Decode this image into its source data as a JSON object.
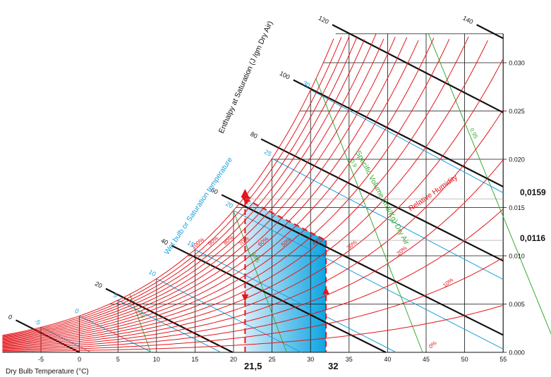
{
  "chart_data": {
    "type": "psychrometric",
    "colors": {
      "rh": "#e3161b",
      "enthalpy": "#111111",
      "grid": "#111111",
      "wetbulb": "#1ba1dc",
      "volume": "#3aa935",
      "arrow": "#e3161b",
      "region_light": "#d2eaf8",
      "region_dark": "#00a0e0"
    },
    "x_axis": {
      "label": "Dry Bulb Temperature (°C)",
      "ticks": [
        "-5",
        "0",
        "5",
        "10",
        "15",
        "20",
        "25",
        "30",
        "35",
        "40",
        "45",
        "50",
        "55"
      ],
      "range": [
        -10,
        55
      ]
    },
    "y_axis": {
      "ticks": [
        "0.000",
        "0.005",
        "0.010",
        "0.015",
        "0.020",
        "0.025",
        "0.030"
      ],
      "range": [
        0,
        0.033
      ]
    },
    "enthalpy": {
      "label": "Enthalpy at Saturation (J /gm Dry Air)",
      "labels": [
        "0",
        "20",
        "40",
        "60",
        "80",
        "100",
        "120",
        "140"
      ]
    },
    "wetbulb": {
      "label": "Wet bulb or Saturation temperature",
      "labels": [
        "-5",
        "0",
        "5",
        "10",
        "15",
        "20",
        "25",
        "30",
        "35"
      ]
    },
    "relative_humidity": {
      "label": "Relative Humidity",
      "labels": [
        "100%",
        "90%",
        "80%",
        "70%",
        "60%",
        "50%",
        "40%",
        "30%",
        "20%",
        "10%",
        "0%"
      ]
    },
    "specific_volume": {
      "label": "Specific Volume (m3/Kg) Dry Air",
      "labels": [
        "0.8",
        "0.85",
        "0.9",
        "0.95"
      ]
    },
    "process": {
      "t_start": "21,5",
      "t_end": "32",
      "w_start": "0,0159",
      "w_end": "0,0116"
    }
  }
}
